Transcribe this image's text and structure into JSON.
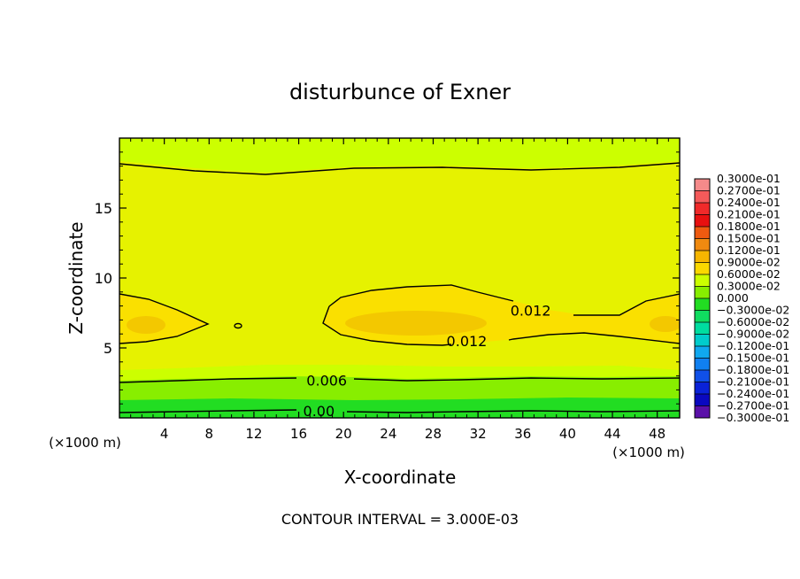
{
  "chart_data": {
    "type": "heatmap",
    "title": "disturbunce of Exner",
    "xlabel": "X-coordinate",
    "ylabel": "Z-coordinate",
    "x_unit_left": "(×1000 m)",
    "x_unit_right": "(×1000 m)",
    "xlim": [
      0,
      50
    ],
    "ylim": [
      0,
      20
    ],
    "xticks": [
      4,
      8,
      12,
      16,
      20,
      24,
      28,
      32,
      36,
      40,
      44,
      48
    ],
    "yticks": [
      5,
      10,
      15
    ],
    "contour_interval_text": "CONTOUR INTERVAL = 3.000E-03",
    "contour_labels": [
      {
        "text": "0.012",
        "x": 36.7,
        "z": 7.7
      },
      {
        "text": "0.012",
        "x": 31.0,
        "z": 5.5
      },
      {
        "text": "0.006",
        "x": 18.5,
        "z": 2.7
      },
      {
        "text": "0.00",
        "x": 17.8,
        "z": 0.5
      }
    ],
    "colorbar": {
      "labels": [
        "0.3000e-01",
        "0.2700e-01",
        "0.2400e-01",
        "0.2100e-01",
        "0.1800e-01",
        "0.1500e-01",
        "0.1200e-01",
        "0.9000e-02",
        "0.6000e-02",
        "0.3000e-02",
        "0.000",
        "−0.3000e-02",
        "−0.6000e-02",
        "−0.9000e-02",
        "−0.1200e-01",
        "−0.1500e-01",
        "−0.1800e-01",
        "−0.2100e-01",
        "−0.2400e-01",
        "−0.2700e-01",
        "−0.3000e-01"
      ],
      "colors": [
        "#f58a8a",
        "#f55a5a",
        "#f02a2a",
        "#e81010",
        "#ee5a10",
        "#f08a10",
        "#f6b600",
        "#fad800",
        "#ccff00",
        "#88ee00",
        "#22dd22",
        "#10dd60",
        "#00dda0",
        "#00cccc",
        "#10a8f0",
        "#1080f0",
        "#1050e8",
        "#0a22d8",
        "#0a08c0",
        "#5a10a8"
      ]
    }
  }
}
